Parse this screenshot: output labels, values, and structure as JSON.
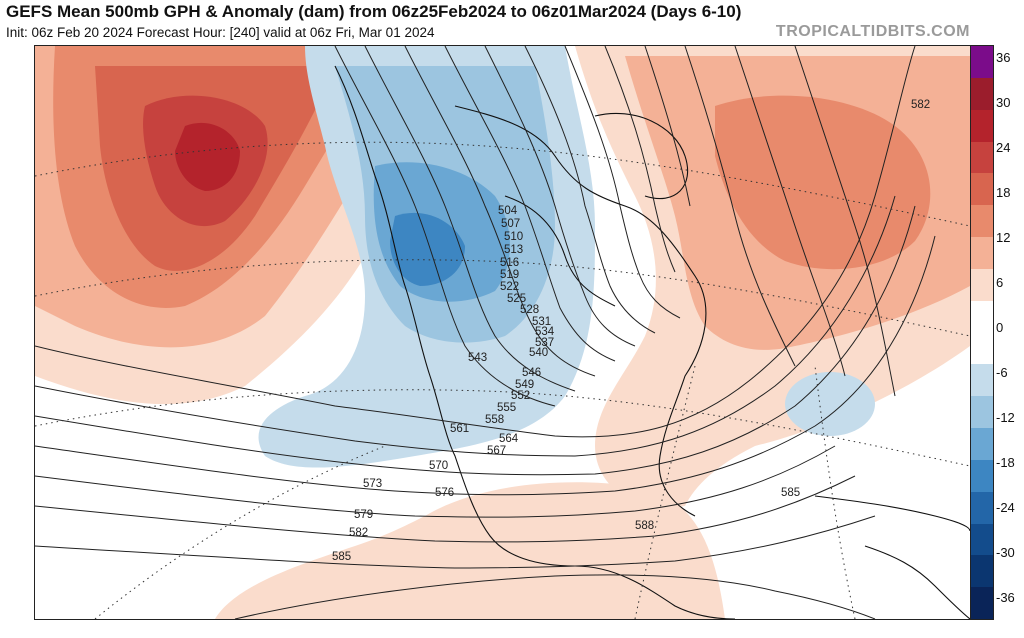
{
  "header": {
    "title": "GEFS Mean 500mb GPH & Anomaly (dam) from 06z25Feb2024 to 06z01Mar2024 (Days 6-10)",
    "subtitle": "Init: 06z Feb 20 2024   Forecast Hour: [240]   valid at 06z Fri, Mar 01 2024",
    "brand": "TROPICALTIDBITS.COM"
  },
  "colorbar": {
    "ticks": [
      "36",
      "30",
      "24",
      "18",
      "12",
      "6",
      "0",
      "-6",
      "-12",
      "-18",
      "-24",
      "-30",
      "-36"
    ],
    "colors": [
      "#7b0c8a",
      "#9b1d2c",
      "#b4232c",
      "#c6423e",
      "#d8654f",
      "#e88a6c",
      "#f4b196",
      "#fadccc",
      "#ffffff",
      "#ffffff",
      "#c5dceb",
      "#9cc5e0",
      "#6aa7d3",
      "#3d86c2",
      "#2366a8",
      "#134c8c",
      "#0b3670",
      "#0a2458"
    ]
  },
  "contours": {
    "labels": [
      "504",
      "507",
      "510",
      "513",
      "516",
      "519",
      "522",
      "525",
      "528",
      "531",
      "534",
      "537",
      "540",
      "543",
      "546",
      "549",
      "552",
      "555",
      "558",
      "561",
      "564",
      "567",
      "570",
      "573",
      "576",
      "579",
      "582",
      "585",
      "588",
      "582",
      "585"
    ]
  }
}
